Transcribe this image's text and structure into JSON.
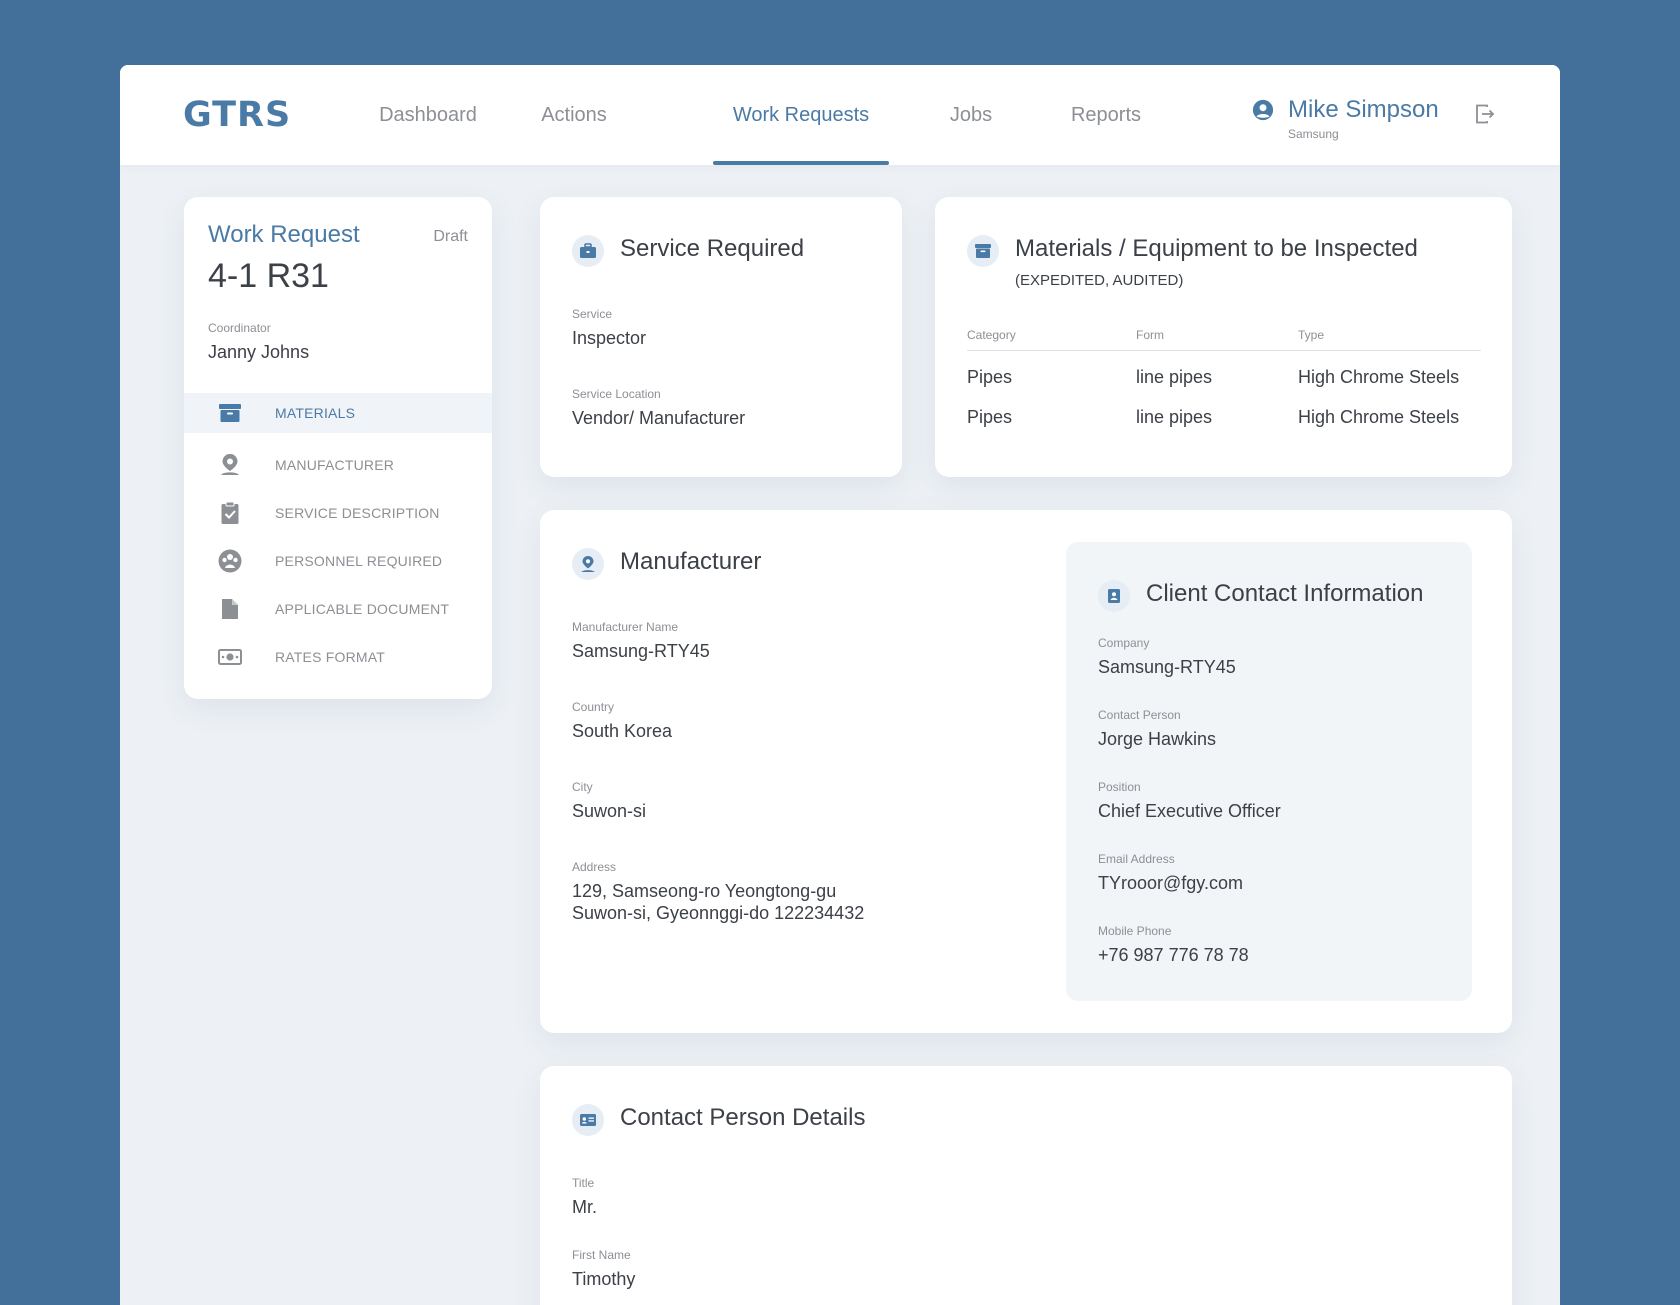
{
  "app": {
    "logo": "GTRS"
  },
  "nav": {
    "items": [
      "Dashboard",
      "Actions",
      "Work Requests",
      "Jobs",
      "Reports"
    ],
    "active": "Work Requests"
  },
  "user": {
    "name": "Mike Simpson",
    "company": "Samsung",
    "icon": "user-circle-icon"
  },
  "sidebar": {
    "title": "Work Request",
    "status": "Draft",
    "id": "4-1 R31",
    "coordinator_label": "Coordinator",
    "coordinator": "Janny Johns",
    "menu": [
      {
        "label": "MATERIALS",
        "icon": "archive-box-icon",
        "active": true
      },
      {
        "label": "MANUFACTURER",
        "icon": "location-pin-icon",
        "active": false
      },
      {
        "label": "SERVICE DESCRIPTION",
        "icon": "clipboard-icon",
        "active": false
      },
      {
        "label": "PERSONNEL REQUIRED",
        "icon": "group-icon",
        "active": false
      },
      {
        "label": "APPLICABLE DOCUMENT",
        "icon": "document-icon",
        "active": false
      },
      {
        "label": "RATES FORMAT",
        "icon": "money-icon",
        "active": false
      }
    ]
  },
  "service": {
    "title": "Service Required",
    "icon": "briefcase-icon",
    "service_label": "Service",
    "service": "Inspector",
    "location_label": "Service Location",
    "location": "Vendor/ Manufacturer"
  },
  "materials": {
    "title": "Materials / Equipment to be Inspected",
    "subtitle": "(EXPEDITED, AUDITED)",
    "icon": "archive-box-icon",
    "columns": [
      "Category",
      "Form",
      "Type"
    ],
    "rows": [
      [
        "Pipes",
        "line pipes",
        "High Chrome Steels"
      ],
      [
        "Pipes",
        "line pipes",
        "High Chrome Steels"
      ]
    ]
  },
  "manufacturer": {
    "title": "Manufacturer",
    "icon": "location-pin-icon",
    "name_label": "Manufacturer Name",
    "name": "Samsung-RTY45",
    "country_label": "Country",
    "country": "South Korea",
    "city_label": "City",
    "city": "Suwon-si",
    "address_label": "Address",
    "address_line1": "129, Samseong-ro Yeongtong-gu",
    "address_line2": "Suwon-si, Gyeonnggi-do 122234432"
  },
  "client": {
    "title": "Client Contact Information",
    "icon": "contact-card-icon",
    "company_label": "Company",
    "company": "Samsung-RTY45",
    "person_label": "Contact Person",
    "person": "Jorge Hawkins",
    "position_label": "Position",
    "position": "Chief Executive Officer",
    "email_label": "Email Address",
    "email": "TYrooor@fgy.com",
    "phone_label": "Mobile Phone",
    "phone": "+76 987 776 78 78"
  },
  "contact": {
    "title": "Contact Person Details",
    "icon": "id-card-icon",
    "title_label": "Title",
    "title_value": "Mr.",
    "first_name_label": "First Name",
    "first_name": "Timothy"
  },
  "colors": {
    "accent": "#4a7aa6",
    "background": "#43709b",
    "surface": "#edf1f5"
  }
}
